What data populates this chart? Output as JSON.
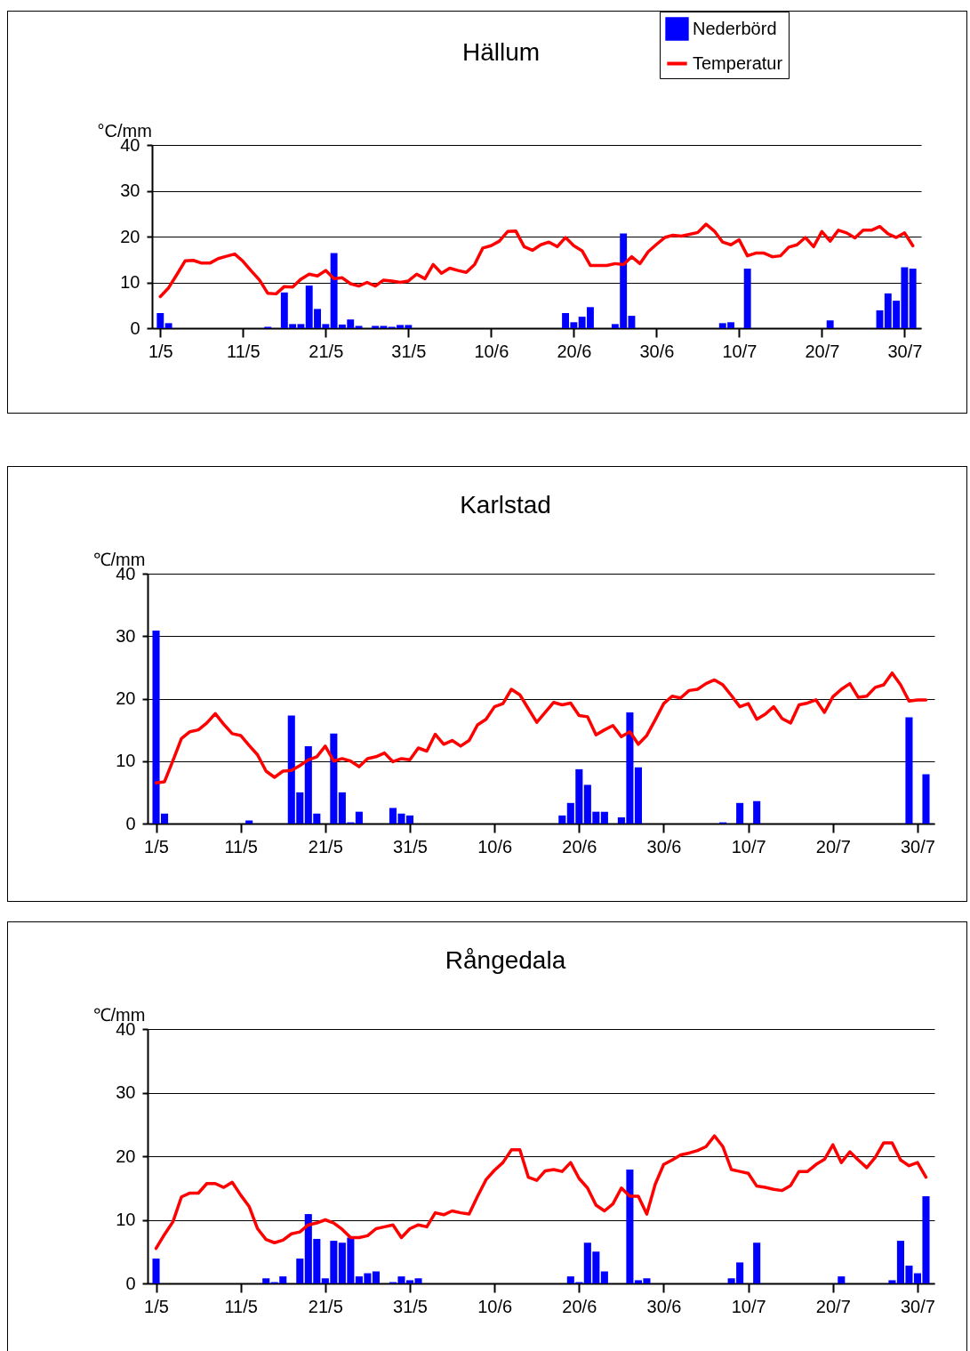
{
  "chart_data": [
    {
      "type": "bar",
      "title": "Hällum",
      "ylabel": "°C/mm",
      "legend": "top right",
      "grid": "y",
      "xlim": [
        "--04-30",
        "--08-01"
      ],
      "ylim": [
        0,
        40
      ],
      "yticks": [
        0,
        10,
        20,
        30,
        40
      ],
      "xticks": [
        {
          "value": "--05-01",
          "label": "1/5"
        },
        {
          "value": "--05-11",
          "label": "11/5"
        },
        {
          "value": "--05-21",
          "label": "21/5"
        },
        {
          "value": "--05-31",
          "label": "31/5"
        },
        {
          "value": "--06-10",
          "label": "10/6"
        },
        {
          "value": "--06-20",
          "label": "20/6"
        },
        {
          "value": "--06-30",
          "label": "30/6"
        },
        {
          "value": "--07-10",
          "label": "10/7"
        },
        {
          "value": "--07-20",
          "label": "20/7"
        },
        {
          "value": "--07-30",
          "label": "30/7"
        }
      ],
      "x": [
        "--05-01",
        "--05-02",
        "--05-03",
        "--05-04",
        "--05-05",
        "--05-06",
        "--05-07",
        "--05-08",
        "--05-09",
        "--05-10",
        "--05-11",
        "--05-12",
        "--05-13",
        "--05-14",
        "--05-15",
        "--05-16",
        "--05-17",
        "--05-18",
        "--05-19",
        "--05-20",
        "--05-21",
        "--05-22",
        "--05-23",
        "--05-24",
        "--05-25",
        "--05-26",
        "--05-27",
        "--05-28",
        "--05-29",
        "--05-30",
        "--05-31",
        "--06-01",
        "--06-02",
        "--06-03",
        "--06-04",
        "--06-05",
        "--06-06",
        "--06-07",
        "--06-08",
        "--06-09",
        "--06-10",
        "--06-11",
        "--06-12",
        "--06-13",
        "--06-14",
        "--06-15",
        "--06-16",
        "--06-17",
        "--06-18",
        "--06-19",
        "--06-20",
        "--06-21",
        "--06-22",
        "--06-23",
        "--06-24",
        "--06-25",
        "--06-26",
        "--06-27",
        "--06-28",
        "--06-29",
        "--06-30",
        "--07-01",
        "--07-02",
        "--07-03",
        "--07-04",
        "--07-05",
        "--07-06",
        "--07-07",
        "--07-08",
        "--07-09",
        "--07-10",
        "--07-11",
        "--07-12",
        "--07-13",
        "--07-14",
        "--07-15",
        "--07-16",
        "--07-17",
        "--07-18",
        "--07-19",
        "--07-20",
        "--07-21",
        "--07-22",
        "--07-23",
        "--07-24",
        "--07-25",
        "--07-26",
        "--07-27",
        "--07-28",
        "--07-29",
        "--07-30",
        "--07-31"
      ],
      "series": [
        {
          "name": "Nederbörd",
          "color": "#0000ff",
          "x": [
            "--05-01",
            "--05-02",
            "--05-14",
            "--05-16",
            "--05-17",
            "--05-18",
            "--05-19",
            "--05-20",
            "--05-21",
            "--05-22",
            "--05-23",
            "--05-24",
            "--05-25",
            "--05-27",
            "--05-28",
            "--05-29",
            "--05-30",
            "--05-31",
            "--06-19",
            "--06-20",
            "--06-21",
            "--06-22",
            "--06-25",
            "--06-26",
            "--06-27",
            "--07-08",
            "--07-09",
            "--07-11",
            "--07-21",
            "--07-27",
            "--07-28",
            "--07-29",
            "--07-30",
            "--07-31"
          ],
          "values": [
            3.3,
            1.1,
            0.3,
            7.8,
            0.9,
            0.9,
            9.3,
            4.2,
            0.9,
            16.4,
            0.8,
            1.9,
            0.5,
            0.5,
            0.5,
            0.3,
            0.7,
            0.7,
            3.3,
            1.3,
            2.5,
            4.6,
            0.9,
            20.7,
            2.7,
            1.1,
            1.3,
            13.0,
            1.7,
            3.9,
            7.6,
            6.0,
            13.3,
            13.0
          ]
        },
        {
          "name": "Temperatur",
          "type": "line",
          "color": "#ff0000",
          "values": [
            6.9,
            8.8,
            11.7,
            14.7,
            14.8,
            14.2,
            14.2,
            15.2,
            15.7,
            16.2,
            14.6,
            12.5,
            10.5,
            7.6,
            7.5,
            9.1,
            9.0,
            10.7,
            11.8,
            11.4,
            12.6,
            10.8,
            11.0,
            9.7,
            9.2,
            10.0,
            9.2,
            10.5,
            10.3,
            10.0,
            10.3,
            11.8,
            10.8,
            13.9,
            12.0,
            13.1,
            12.6,
            12.2,
            13.9,
            17.5,
            18.0,
            19.0,
            21.1,
            21.2,
            17.8,
            17.0,
            18.2,
            18.8,
            17.8,
            19.8,
            18.0,
            16.9,
            13.7,
            13.7,
            13.7,
            14.1,
            13.9,
            15.6,
            14.1,
            16.7,
            18.3,
            19.8,
            20.3,
            20.1,
            20.5,
            20.9,
            22.7,
            21.2,
            18.8,
            18.2,
            19.3,
            15.8,
            16.4,
            16.4,
            15.6,
            15.8,
            17.7,
            18.2,
            19.8,
            17.8,
            21.1,
            19.0,
            21.4,
            20.8,
            19.7,
            21.4,
            21.4,
            22.2,
            20.6,
            19.8,
            20.8,
            18.0
          ]
        }
      ]
    },
    {
      "type": "bar",
      "title": "Karlstad",
      "ylabel": "℃/mm",
      "grid": "y",
      "xlim": [
        "--04-30",
        "--08-01"
      ],
      "ylim": [
        0,
        40
      ],
      "yticks": [
        0,
        10,
        20,
        30,
        40
      ],
      "xticks": [
        {
          "value": "--05-01",
          "label": "1/5"
        },
        {
          "value": "--05-11",
          "label": "11/5"
        },
        {
          "value": "--05-21",
          "label": "21/5"
        },
        {
          "value": "--05-31",
          "label": "31/5"
        },
        {
          "value": "--06-10",
          "label": "10/6"
        },
        {
          "value": "--06-20",
          "label": "20/6"
        },
        {
          "value": "--06-30",
          "label": "30/6"
        },
        {
          "value": "--07-10",
          "label": "10/7"
        },
        {
          "value": "--07-20",
          "label": "20/7"
        },
        {
          "value": "--07-30",
          "label": "30/7"
        }
      ],
      "x": [
        "--05-01",
        "--05-02",
        "--05-03",
        "--05-04",
        "--05-05",
        "--05-06",
        "--05-07",
        "--05-08",
        "--05-09",
        "--05-10",
        "--05-11",
        "--05-12",
        "--05-13",
        "--05-14",
        "--05-15",
        "--05-16",
        "--05-17",
        "--05-18",
        "--05-19",
        "--05-20",
        "--05-21",
        "--05-22",
        "--05-23",
        "--05-24",
        "--05-25",
        "--05-26",
        "--05-27",
        "--05-28",
        "--05-29",
        "--05-30",
        "--05-31",
        "--06-01",
        "--06-02",
        "--06-03",
        "--06-04",
        "--06-05",
        "--06-06",
        "--06-07",
        "--06-08",
        "--06-09",
        "--06-10",
        "--06-11",
        "--06-12",
        "--06-13",
        "--06-14",
        "--06-15",
        "--06-16",
        "--06-17",
        "--06-18",
        "--06-19",
        "--06-20",
        "--06-21",
        "--06-22",
        "--06-23",
        "--06-24",
        "--06-25",
        "--06-26",
        "--06-27",
        "--06-28",
        "--06-29",
        "--06-30",
        "--07-01",
        "--07-02",
        "--07-03",
        "--07-04",
        "--07-05",
        "--07-06",
        "--07-07",
        "--07-08",
        "--07-09",
        "--07-10",
        "--07-11",
        "--07-12",
        "--07-13",
        "--07-14",
        "--07-15",
        "--07-16",
        "--07-17",
        "--07-18",
        "--07-19",
        "--07-20",
        "--07-21",
        "--07-22",
        "--07-23",
        "--07-24",
        "--07-25",
        "--07-26",
        "--07-27",
        "--07-28",
        "--07-29",
        "--07-30",
        "--07-31"
      ],
      "series": [
        {
          "color": "#0000ff",
          "x": [
            "--05-01",
            "--05-02",
            "--05-12",
            "--05-17",
            "--05-18",
            "--05-19",
            "--05-20",
            "--05-22",
            "--05-23",
            "--05-24",
            "--05-25",
            "--05-29",
            "--05-30",
            "--05-31",
            "--06-18",
            "--06-19",
            "--06-20",
            "--06-21",
            "--06-22",
            "--06-23",
            "--06-25",
            "--06-26",
            "--06-27",
            "--07-07",
            "--07-09",
            "--07-11",
            "--07-29",
            "--07-31"
          ],
          "values": [
            30.9,
            1.6,
            0.5,
            17.3,
            5.0,
            12.4,
            1.6,
            14.4,
            5.0,
            0.2,
            1.9,
            2.5,
            1.6,
            1.3,
            1.3,
            3.3,
            8.7,
            6.2,
            1.9,
            1.9,
            1.0,
            17.8,
            9.0,
            0.2,
            3.3,
            3.6,
            17.0,
            7.9
          ]
        },
        {
          "type": "line",
          "color": "#ff0000",
          "values": [
            6.5,
            6.7,
            10.1,
            13.6,
            14.7,
            15.0,
            16.1,
            17.6,
            15.9,
            14.4,
            14.1,
            12.5,
            11.0,
            8.4,
            7.4,
            8.4,
            8.5,
            9.3,
            10.2,
            10.7,
            12.4,
            10.0,
            10.4,
            10.0,
            9.1,
            10.4,
            10.7,
            11.3,
            9.9,
            10.4,
            10.2,
            12.1,
            11.6,
            14.3,
            12.7,
            13.3,
            12.4,
            13.3,
            15.8,
            16.7,
            18.7,
            19.2,
            21.5,
            20.6,
            18.4,
            16.2,
            17.8,
            19.4,
            19.0,
            19.3,
            17.3,
            17.1,
            14.2,
            15.0,
            15.7,
            13.9,
            14.7,
            12.7,
            14.1,
            16.6,
            19.2,
            20.4,
            20.1,
            21.3,
            21.5,
            22.4,
            23.0,
            22.2,
            20.5,
            18.7,
            19.2,
            16.7,
            17.5,
            18.7,
            16.8,
            16.1,
            19.0,
            19.3,
            19.8,
            17.8,
            20.3,
            21.5,
            22.4,
            20.2,
            20.4,
            21.8,
            22.2,
            24.1,
            22.2,
            19.6,
            19.8,
            19.8
          ]
        }
      ]
    },
    {
      "type": "bar",
      "title": "Rångedala",
      "ylabel": "℃/mm",
      "grid": "y",
      "xlim": [
        "--04-30",
        "--08-01"
      ],
      "ylim": [
        0,
        40
      ],
      "yticks": [
        0,
        10,
        20,
        30,
        40
      ],
      "xticks": [
        {
          "value": "--05-01",
          "label": "1/5"
        },
        {
          "value": "--05-11",
          "label": "11/5"
        },
        {
          "value": "--05-21",
          "label": "21/5"
        },
        {
          "value": "--05-31",
          "label": "31/5"
        },
        {
          "value": "--06-10",
          "label": "10/6"
        },
        {
          "value": "--06-20",
          "label": "20/6"
        },
        {
          "value": "--06-30",
          "label": "30/6"
        },
        {
          "value": "--07-10",
          "label": "10/7"
        },
        {
          "value": "--07-20",
          "label": "20/7"
        },
        {
          "value": "--07-30",
          "label": "30/7"
        }
      ],
      "x": [
        "--05-01",
        "--05-02",
        "--05-03",
        "--05-04",
        "--05-05",
        "--05-06",
        "--05-07",
        "--05-08",
        "--05-09",
        "--05-10",
        "--05-11",
        "--05-12",
        "--05-13",
        "--05-14",
        "--05-15",
        "--05-16",
        "--05-17",
        "--05-18",
        "--05-19",
        "--05-20",
        "--05-21",
        "--05-22",
        "--05-23",
        "--05-24",
        "--05-25",
        "--05-26",
        "--05-27",
        "--05-28",
        "--05-29",
        "--05-30",
        "--05-31",
        "--06-01",
        "--06-02",
        "--06-03",
        "--06-04",
        "--06-05",
        "--06-06",
        "--06-07",
        "--06-08",
        "--06-09",
        "--06-10",
        "--06-11",
        "--06-12",
        "--06-13",
        "--06-14",
        "--06-15",
        "--06-16",
        "--06-17",
        "--06-18",
        "--06-19",
        "--06-20",
        "--06-21",
        "--06-22",
        "--06-23",
        "--06-24",
        "--06-25",
        "--06-26",
        "--06-27",
        "--06-28",
        "--06-29",
        "--06-30",
        "--07-01",
        "--07-02",
        "--07-03",
        "--07-04",
        "--07-05",
        "--07-06",
        "--07-07",
        "--07-08",
        "--07-09",
        "--07-10",
        "--07-11",
        "--07-12",
        "--07-13",
        "--07-14",
        "--07-15",
        "--07-16",
        "--07-17",
        "--07-18",
        "--07-19",
        "--07-20",
        "--07-21",
        "--07-22",
        "--07-23",
        "--07-24",
        "--07-25",
        "--07-26",
        "--07-27",
        "--07-28",
        "--07-29",
        "--07-30",
        "--07-31"
      ],
      "series": [
        {
          "color": "#0000ff",
          "x": [
            "--05-01",
            "--05-14",
            "--05-15",
            "--05-16",
            "--05-18",
            "--05-19",
            "--05-20",
            "--05-21",
            "--05-22",
            "--05-23",
            "--05-24",
            "--05-25",
            "--05-26",
            "--05-27",
            "--05-29",
            "--05-30",
            "--05-31",
            "--06-01",
            "--06-19",
            "--06-20",
            "--06-21",
            "--06-22",
            "--06-23",
            "--06-26",
            "--06-27",
            "--06-28",
            "--07-08",
            "--07-09",
            "--07-11",
            "--07-21",
            "--07-27",
            "--07-28",
            "--07-29",
            "--07-30",
            "--07-31"
          ],
          "values": [
            3.9,
            0.8,
            0.2,
            1.1,
            3.9,
            10.9,
            7.0,
            0.8,
            6.7,
            6.4,
            7.2,
            1.1,
            1.6,
            1.9,
            0.2,
            1.1,
            0.5,
            0.8,
            1.1,
            0.2,
            6.4,
            5.0,
            1.9,
            17.9,
            0.5,
            0.8,
            0.8,
            3.3,
            6.4,
            1.1,
            0.5,
            6.7,
            2.8,
            1.6,
            13.7
          ]
        },
        {
          "type": "line",
          "color": "#ff0000",
          "values": [
            5.5,
            7.7,
            9.7,
            13.6,
            14.2,
            14.2,
            15.7,
            15.7,
            15.1,
            15.9,
            13.9,
            12.1,
            8.6,
            6.9,
            6.4,
            6.8,
            7.8,
            8.1,
            9.2,
            9.5,
            10.0,
            9.5,
            8.5,
            7.2,
            7.2,
            7.5,
            8.6,
            8.9,
            9.2,
            7.2,
            8.6,
            9.2,
            8.9,
            11.1,
            10.8,
            11.4,
            11.1,
            10.9,
            13.7,
            16.3,
            17.8,
            19.0,
            21.0,
            21.0,
            16.7,
            16.2,
            17.7,
            17.9,
            17.6,
            19.0,
            16.5,
            15.0,
            12.3,
            11.4,
            12.5,
            15.0,
            13.7,
            13.7,
            10.9,
            15.6,
            18.7,
            19.4,
            20.2,
            20.5,
            20.9,
            21.5,
            23.2,
            21.5,
            17.9,
            17.6,
            17.3,
            15.3,
            15.1,
            14.8,
            14.6,
            15.4,
            17.6,
            17.6,
            18.7,
            19.5,
            21.8,
            19.0,
            20.7,
            19.4,
            18.2,
            19.8,
            22.1,
            22.1,
            19.4,
            18.5,
            19.0,
            16.7
          ]
        }
      ]
    }
  ]
}
